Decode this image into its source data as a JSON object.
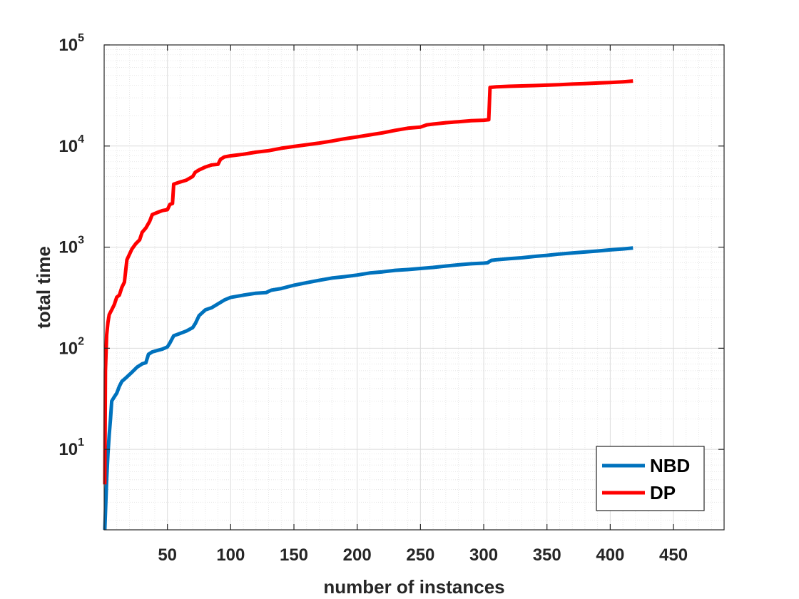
{
  "chart_data": {
    "type": "line",
    "xlabel": "number of instances",
    "ylabel": "total time",
    "xlim": [
      0,
      490
    ],
    "ylim": [
      1.6,
      100000
    ],
    "yscale": "log",
    "grid": true,
    "minor_grid": true,
    "legend_position": "bottom-right",
    "x_ticks": [
      50,
      100,
      150,
      200,
      250,
      300,
      350,
      400,
      450
    ],
    "y_ticks": [
      {
        "value": 10,
        "base": "10",
        "exp": "1"
      },
      {
        "value": 100,
        "base": "10",
        "exp": "2"
      },
      {
        "value": 1000,
        "base": "10",
        "exp": "3"
      },
      {
        "value": 10000,
        "base": "10",
        "exp": "4"
      },
      {
        "value": 100000,
        "base": "10",
        "exp": "5"
      }
    ],
    "series": [
      {
        "name": "NBD",
        "color": "#0072BD",
        "points": [
          [
            0.5,
            1.6
          ],
          [
            2,
            5
          ],
          [
            3,
            9
          ],
          [
            4,
            14
          ],
          [
            5,
            20
          ],
          [
            6,
            30
          ],
          [
            8,
            33
          ],
          [
            10,
            36
          ],
          [
            12,
            42
          ],
          [
            14,
            47
          ],
          [
            18,
            52
          ],
          [
            22,
            58
          ],
          [
            26,
            65
          ],
          [
            30,
            70
          ],
          [
            33,
            72
          ],
          [
            35,
            87
          ],
          [
            38,
            92
          ],
          [
            42,
            95
          ],
          [
            46,
            98
          ],
          [
            50,
            103
          ],
          [
            52,
            113
          ],
          [
            55,
            133
          ],
          [
            60,
            140
          ],
          [
            65,
            148
          ],
          [
            70,
            160
          ],
          [
            72,
            175
          ],
          [
            75,
            210
          ],
          [
            80,
            240
          ],
          [
            85,
            252
          ],
          [
            90,
            275
          ],
          [
            95,
            300
          ],
          [
            100,
            318
          ],
          [
            110,
            335
          ],
          [
            120,
            350
          ],
          [
            128,
            355
          ],
          [
            132,
            375
          ],
          [
            140,
            390
          ],
          [
            150,
            420
          ],
          [
            160,
            445
          ],
          [
            170,
            470
          ],
          [
            180,
            495
          ],
          [
            190,
            510
          ],
          [
            200,
            530
          ],
          [
            210,
            555
          ],
          [
            220,
            570
          ],
          [
            230,
            590
          ],
          [
            240,
            600
          ],
          [
            250,
            615
          ],
          [
            260,
            630
          ],
          [
            270,
            650
          ],
          [
            280,
            668
          ],
          [
            290,
            685
          ],
          [
            300,
            695
          ],
          [
            303,
            700
          ],
          [
            306,
            740
          ],
          [
            310,
            750
          ],
          [
            320,
            770
          ],
          [
            330,
            785
          ],
          [
            340,
            810
          ],
          [
            350,
            830
          ],
          [
            360,
            855
          ],
          [
            370,
            875
          ],
          [
            380,
            895
          ],
          [
            390,
            915
          ],
          [
            400,
            940
          ],
          [
            410,
            960
          ],
          [
            418,
            980
          ]
        ]
      },
      {
        "name": "DP",
        "color": "#FF0000",
        "points": [
          [
            0.5,
            4.5
          ],
          [
            1,
            60
          ],
          [
            2,
            135
          ],
          [
            3,
            180
          ],
          [
            4,
            215
          ],
          [
            6,
            240
          ],
          [
            8,
            270
          ],
          [
            10,
            320
          ],
          [
            12,
            335
          ],
          [
            14,
            400
          ],
          [
            16,
            450
          ],
          [
            18,
            750
          ],
          [
            20,
            850
          ],
          [
            22,
            960
          ],
          [
            25,
            1080
          ],
          [
            28,
            1180
          ],
          [
            30,
            1400
          ],
          [
            33,
            1550
          ],
          [
            36,
            1800
          ],
          [
            38,
            2100
          ],
          [
            42,
            2200
          ],
          [
            46,
            2300
          ],
          [
            50,
            2350
          ],
          [
            52,
            2650
          ],
          [
            54,
            2700
          ],
          [
            55,
            4200
          ],
          [
            60,
            4400
          ],
          [
            65,
            4600
          ],
          [
            70,
            5000
          ],
          [
            72,
            5500
          ],
          [
            75,
            5800
          ],
          [
            80,
            6200
          ],
          [
            85,
            6500
          ],
          [
            90,
            6600
          ],
          [
            92,
            7400
          ],
          [
            95,
            7800
          ],
          [
            100,
            8000
          ],
          [
            110,
            8300
          ],
          [
            120,
            8700
          ],
          [
            130,
            9000
          ],
          [
            140,
            9500
          ],
          [
            150,
            9900
          ],
          [
            160,
            10300
          ],
          [
            170,
            10700
          ],
          [
            180,
            11200
          ],
          [
            190,
            11800
          ],
          [
            200,
            12300
          ],
          [
            210,
            12900
          ],
          [
            220,
            13500
          ],
          [
            230,
            14300
          ],
          [
            240,
            15000
          ],
          [
            250,
            15400
          ],
          [
            255,
            16200
          ],
          [
            260,
            16500
          ],
          [
            270,
            17000
          ],
          [
            280,
            17400
          ],
          [
            290,
            17800
          ],
          [
            300,
            18000
          ],
          [
            304,
            18200
          ],
          [
            305,
            38000
          ],
          [
            310,
            38500
          ],
          [
            320,
            39000
          ],
          [
            330,
            39300
          ],
          [
            340,
            39600
          ],
          [
            350,
            40000
          ],
          [
            360,
            40500
          ],
          [
            370,
            41000
          ],
          [
            380,
            41500
          ],
          [
            390,
            42000
          ],
          [
            400,
            42500
          ],
          [
            410,
            43200
          ],
          [
            418,
            44000
          ]
        ]
      }
    ]
  }
}
